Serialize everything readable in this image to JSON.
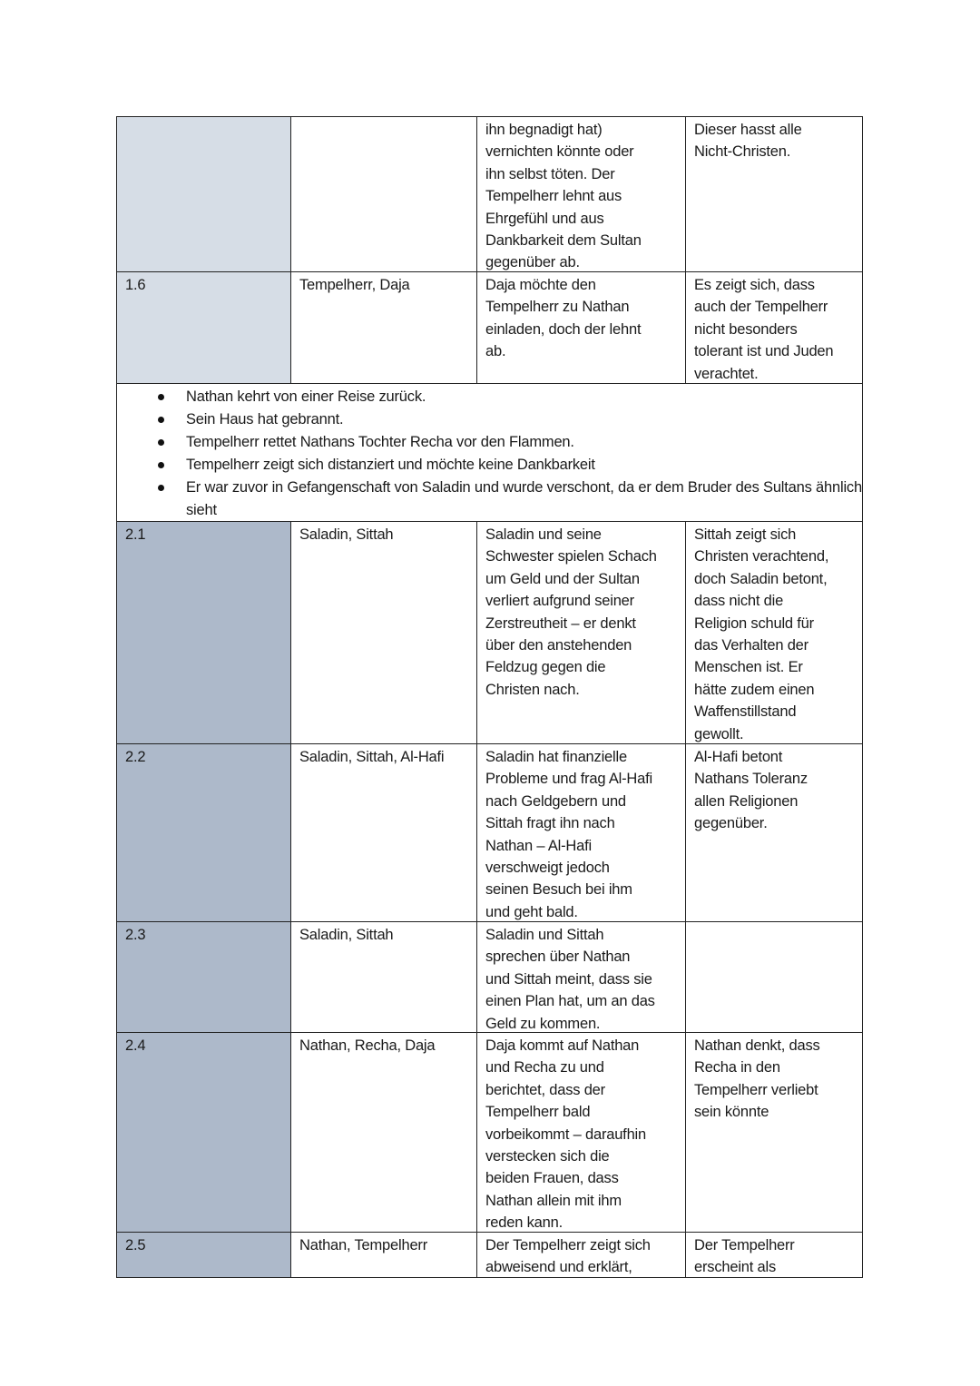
{
  "colors": {
    "act1_shade": "#d6dde6",
    "act2_shade": "#adb9ca",
    "border": "#222222"
  },
  "rows_top": [
    {
      "scene": "",
      "characters": [],
      "content": [
        "ihn begnadigt hat)",
        "vernichten könnte oder",
        "ihn selbst töten. Der",
        "Tempelherr lehnt aus",
        "Ehrgefühl und aus",
        "Dankbarkeit dem Sultan",
        "gegenüber ab."
      ],
      "interpretation": [
        "Dieser hasst alle",
        "Nicht-Christen."
      ],
      "shade": "act1"
    },
    {
      "scene": "1.6",
      "characters": [
        "Tempelherr, Daja"
      ],
      "content": [
        "Daja möchte den",
        "Tempelherr zu Nathan",
        "einladen, doch der lehnt",
        "ab."
      ],
      "interpretation": [
        "Es zeigt sich, dass",
        "auch der Tempelherr",
        "nicht besonders",
        "tolerant ist und Juden",
        "verachtet."
      ],
      "shade": "act1"
    }
  ],
  "summary": [
    "Nathan kehrt von einer Reise zurück.",
    "Sein Haus hat gebrannt.",
    "Tempelherr rettet Nathans Tochter Recha vor den Flammen.",
    "Tempelherr zeigt sich distanziert und möchte keine Dankbarkeit",
    "Er war zuvor in Gefangenschaft von Saladin und wurde verschont, da er dem Bruder des Sultans ähnlich sieht"
  ],
  "rows_bottom": [
    {
      "scene": "2.1",
      "characters": [
        "Saladin, Sittah"
      ],
      "content": [
        "Saladin und seine",
        "Schwester spielen Schach",
        "um Geld und der Sultan",
        "verliert aufgrund seiner",
        "Zerstreutheit – er denkt",
        "über den anstehenden",
        "Feldzug gegen die",
        "Christen nach."
      ],
      "interpretation": [
        "Sittah zeigt sich",
        "Christen verachtend,",
        "doch Saladin betont,",
        "dass nicht die",
        "Religion schuld für",
        "das Verhalten der",
        "Menschen ist. Er",
        "hätte zudem einen",
        "Waffenstillstand",
        "gewollt."
      ],
      "shade": "act2"
    },
    {
      "scene": "2.2",
      "characters": [
        "Saladin, Sittah, Al-Hafi"
      ],
      "content": [
        "Saladin hat finanzielle",
        "Probleme und frag Al-Hafi",
        "nach Geldgebern und",
        "Sittah fragt ihn nach",
        "Nathan – Al-Hafi",
        "verschweigt jedoch",
        "seinen Besuch bei ihm",
        "und geht bald."
      ],
      "interpretation": [
        "Al-Hafi betont",
        "Nathans Toleranz",
        "allen Religionen",
        "gegenüber."
      ],
      "shade": "act2"
    },
    {
      "scene": "2.3",
      "characters": [
        "Saladin, Sittah"
      ],
      "content": [
        "Saladin und Sittah",
        "sprechen über Nathan",
        "und Sittah meint, dass sie",
        "einen Plan hat, um an das",
        "Geld zu kommen."
      ],
      "interpretation": [],
      "shade": "act2"
    },
    {
      "scene": "2.4",
      "characters": [
        "Nathan, Recha, Daja"
      ],
      "content": [
        "Daja kommt auf Nathan",
        "und Recha zu und",
        "berichtet, dass der",
        "Tempelherr bald",
        "vorbeikommt – daraufhin",
        "verstecken sich die",
        "beiden Frauen, dass",
        "Nathan allein mit ihm",
        "reden kann."
      ],
      "interpretation": [
        "Nathan denkt, dass",
        "Recha in den",
        "Tempelherr verliebt",
        "sein könnte"
      ],
      "shade": "act2"
    },
    {
      "scene": "2.5",
      "characters": [
        "Nathan, Tempelherr"
      ],
      "content": [
        "Der Tempelherr zeigt sich",
        "abweisend und erklärt,"
      ],
      "interpretation": [
        "Der Tempelherr",
        "erscheint als"
      ],
      "shade": "act2"
    }
  ]
}
